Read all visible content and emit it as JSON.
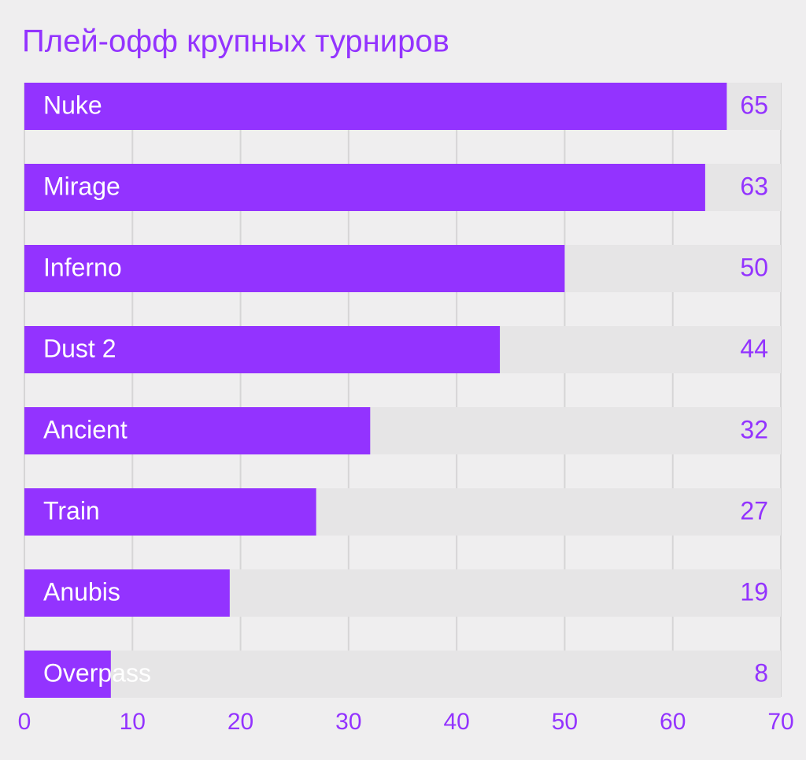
{
  "chart_data": {
    "type": "bar",
    "orientation": "horizontal",
    "title": "Плей-офф крупных турниров",
    "categories": [
      "Nuke",
      "Mirage",
      "Inferno",
      "Dust 2",
      "Ancient",
      "Train",
      "Anubis",
      "Overpass"
    ],
    "values": [
      65,
      63,
      50,
      44,
      32,
      27,
      19,
      8
    ],
    "color": "#9333ff",
    "xlim": [
      0,
      70
    ],
    "xticks": [
      0,
      10,
      20,
      30,
      40,
      50,
      60,
      70
    ],
    "grid": true
  }
}
